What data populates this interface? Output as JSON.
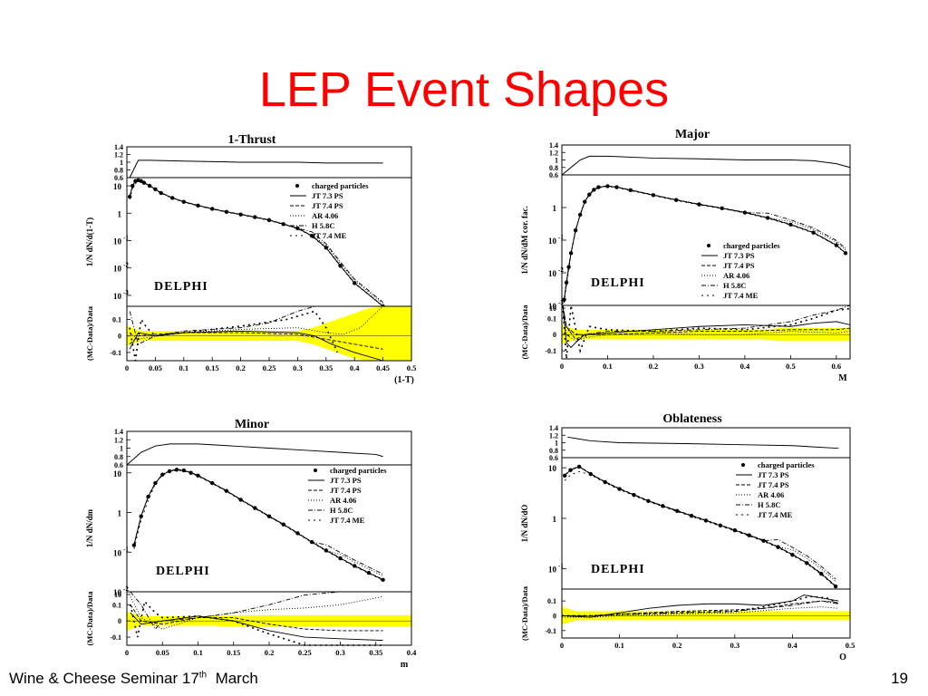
{
  "slide": {
    "title": "LEP Event Shapes",
    "footer_left": "Wine & Cheese Seminar 17",
    "footer_sup": "th",
    "footer_month": "  March",
    "page_number": "19"
  },
  "chart_data": [
    {
      "type": "line",
      "title": "1-Thrust",
      "xlabel": "(1-T)",
      "ylabel": "1/N dN/d(1-T)",
      "experiment_label": "DELPHI",
      "xlim": [
        0,
        0.5
      ],
      "xticks": [
        "0",
        "0.05",
        "0.1",
        "0.15",
        "0.2",
        "0.25",
        "0.3",
        "0.35",
        "0.4",
        "0.45",
        "0.5"
      ],
      "ratio_panel": {
        "yticks": [
          "1.4",
          "1.2",
          "1",
          "0.8",
          "0.6"
        ],
        "x": [
          0.005,
          0.02,
          0.04,
          0.1,
          0.2,
          0.3,
          0.35,
          0.4,
          0.45
        ],
        "y": [
          0.6,
          1.05,
          1.05,
          1.03,
          1.0,
          1.0,
          0.98,
          0.98,
          0.98
        ]
      },
      "main_panel": {
        "yticks": [
          "10",
          "1",
          "10-1",
          "10-2",
          "10-3"
        ],
        "log_range": [
          -3.4,
          1.3
        ],
        "legend": [
          "charged particles",
          "JT 7.3 PS",
          "JT 7.4 PS",
          "AR 4.06",
          "H 5.8C",
          "JT 7.4 ME"
        ],
        "data": {
          "x": [
            0.005,
            0.01,
            0.015,
            0.02,
            0.025,
            0.03,
            0.04,
            0.05,
            0.06,
            0.08,
            0.1,
            0.125,
            0.15,
            0.175,
            0.2,
            0.225,
            0.25,
            0.275,
            0.3,
            0.325,
            0.35,
            0.375,
            0.4,
            0.45
          ],
          "y": [
            4,
            10,
            15,
            16,
            15,
            13,
            10,
            7.5,
            5.5,
            3.6,
            2.6,
            1.9,
            1.45,
            1.12,
            0.9,
            0.72,
            0.56,
            0.4,
            0.28,
            0.15,
            0.055,
            0.012,
            0.0028,
            0.0004
          ]
        }
      },
      "diff_panel": {
        "yticks": [
          "0.1",
          "0",
          "-0.1"
        ],
        "ylabel": "(MC-Data)/Data",
        "series": [
          {
            "name": "JT 7.3 PS",
            "x": [
              0.005,
              0.02,
              0.05,
              0.1,
              0.2,
              0.3,
              0.33,
              0.36,
              0.4,
              0.45
            ],
            "y": [
              -0.08,
              0.02,
              0.0,
              0.02,
              0.03,
              0.02,
              0.0,
              -0.05,
              -0.1,
              -0.15
            ]
          },
          {
            "name": "JT 7.4 PS",
            "x": [
              0.005,
              0.02,
              0.05,
              0.1,
              0.2,
              0.3,
              0.35,
              0.4,
              0.45
            ],
            "y": [
              -0.05,
              0.0,
              0.01,
              0.02,
              0.02,
              0.01,
              -0.02,
              -0.05,
              -0.08
            ]
          },
          {
            "name": "AR 4.06",
            "x": [
              0.005,
              0.02,
              0.05,
              0.1,
              0.2,
              0.3,
              0.35,
              0.38,
              0.41,
              0.45
            ],
            "y": [
              0.02,
              -0.02,
              0.0,
              0.02,
              0.04,
              0.05,
              0.02,
              0.01,
              0.05,
              0.2
            ]
          },
          {
            "name": "H 5.8C",
            "x": [
              0.005,
              0.02,
              0.05,
              0.1,
              0.2,
              0.25,
              0.3,
              0.33,
              0.36,
              0.4
            ],
            "y": [
              0.15,
              -0.05,
              0.0,
              0.03,
              0.05,
              0.08,
              0.15,
              0.2,
              0.25,
              0.35
            ]
          },
          {
            "name": "JT 7.4 ME",
            "x": [
              0.005,
              0.015,
              0.025,
              0.035,
              0.05,
              0.1,
              0.2,
              0.28,
              0.33,
              0.35,
              0.37
            ],
            "y": [
              0.05,
              -0.2,
              0.1,
              0.05,
              0.0,
              0.02,
              0.06,
              0.1,
              0.15,
              0.05,
              -0.1
            ]
          }
        ]
      }
    },
    {
      "type": "line",
      "title": "Major",
      "xlabel": "M",
      "ylabel": "1/N dN/dM cor. fac.",
      "experiment_label": "DELPHI",
      "xlim": [
        0,
        0.63
      ],
      "xticks": [
        "0",
        "0.1",
        "0.2",
        "0.3",
        "0.4",
        "0.5",
        "0.6"
      ],
      "ratio_panel": {
        "yticks": [
          "1.4",
          "1.2",
          "1",
          "0.8",
          "0.6"
        ],
        "x": [
          0.0,
          0.02,
          0.04,
          0.06,
          0.1,
          0.2,
          0.3,
          0.4,
          0.5,
          0.55,
          0.6,
          0.63
        ],
        "y": [
          0.6,
          0.8,
          1.0,
          1.1,
          1.1,
          1.05,
          1.03,
          1.0,
          1.0,
          0.98,
          0.9,
          0.8
        ]
      },
      "main_panel": {
        "yticks": [
          "1",
          "10-1",
          "10-2",
          "10-3"
        ],
        "log_range": [
          -3.0,
          1.0
        ],
        "legend": [
          "charged particles",
          "JT 7.3 PS",
          "JT 7.4 PS",
          "AR 4.06",
          "H 5.8C",
          "JT 7.4 ME"
        ],
        "data": {
          "x": [
            0.005,
            0.01,
            0.015,
            0.02,
            0.03,
            0.04,
            0.05,
            0.06,
            0.07,
            0.08,
            0.1,
            0.12,
            0.15,
            0.2,
            0.25,
            0.3,
            0.35,
            0.4,
            0.45,
            0.5,
            0.55,
            0.6,
            0.62
          ],
          "y": [
            0.0015,
            0.005,
            0.015,
            0.04,
            0.2,
            0.6,
            1.5,
            2.5,
            3.5,
            4.2,
            4.5,
            4.2,
            3.4,
            2.4,
            1.7,
            1.25,
            0.95,
            0.7,
            0.48,
            0.3,
            0.17,
            0.07,
            0.04
          ]
        }
      },
      "diff_panel": {
        "yticks": [
          "10",
          "0.1",
          "0",
          "-0.1"
        ],
        "ylabel": "(MC-Data)/Data",
        "series": [
          {
            "name": "JT 7.3 PS",
            "x": [
              0.002,
              0.01,
              0.02,
              0.03,
              0.05,
              0.1,
              0.2,
              0.3,
              0.4,
              0.5,
              0.55,
              0.6,
              0.63
            ],
            "y": [
              0.3,
              -0.05,
              -0.08,
              -0.05,
              0.0,
              0.01,
              0.03,
              0.05,
              0.06,
              0.05,
              0.07,
              0.08,
              0.06
            ]
          },
          {
            "name": "JT 7.4 PS",
            "x": [
              0.002,
              0.01,
              0.03,
              0.05,
              0.1,
              0.2,
              0.3,
              0.4,
              0.5,
              0.6,
              0.63
            ],
            "y": [
              0.25,
              0.05,
              -0.03,
              0.0,
              0.0,
              0.01,
              0.02,
              0.02,
              0.03,
              0.03,
              0.04
            ]
          },
          {
            "name": "AR 4.06",
            "x": [
              0.002,
              0.01,
              0.03,
              0.05,
              0.1,
              0.2,
              0.3,
              0.4,
              0.5,
              0.6,
              0.63
            ],
            "y": [
              0.2,
              0.0,
              -0.04,
              -0.02,
              0.0,
              0.01,
              0.0,
              0.0,
              0.02,
              0.01,
              0.02
            ]
          },
          {
            "name": "H 5.8C",
            "x": [
              0.002,
              0.01,
              0.03,
              0.05,
              0.1,
              0.2,
              0.3,
              0.4,
              0.5,
              0.55,
              0.6,
              0.63
            ],
            "y": [
              0.25,
              0.05,
              0.0,
              0.0,
              0.02,
              0.02,
              0.03,
              0.04,
              0.08,
              0.12,
              0.15,
              0.18
            ]
          },
          {
            "name": "JT 7.4 ME",
            "x": [
              0.002,
              0.01,
              0.02,
              0.04,
              0.06,
              0.1,
              0.2,
              0.3,
              0.4,
              0.5,
              0.55,
              0.6,
              0.63
            ],
            "y": [
              0.35,
              -0.15,
              0.3,
              -0.1,
              0.05,
              0.03,
              0.02,
              0.04,
              0.03,
              0.06,
              0.1,
              0.15,
              0.16
            ]
          }
        ]
      }
    },
    {
      "type": "line",
      "title": "Minor",
      "xlabel": "m",
      "ylabel": "1/N dN/dm",
      "experiment_label": "DELPHI",
      "xlim": [
        0,
        0.4
      ],
      "xticks": [
        "0",
        "0.05",
        "0.1",
        "0.15",
        "0.2",
        "0.25",
        "0.3",
        "0.35",
        "0.4"
      ],
      "ratio_panel": {
        "yticks": [
          "1.4",
          "1.2",
          "1",
          "0.8",
          "0.6"
        ],
        "x": [
          0.0,
          0.02,
          0.04,
          0.06,
          0.1,
          0.15,
          0.2,
          0.25,
          0.3,
          0.35,
          0.36
        ],
        "y": [
          0.6,
          0.9,
          1.05,
          1.1,
          1.1,
          1.05,
          1.0,
          0.95,
          0.9,
          0.85,
          0.8
        ]
      },
      "main_panel": {
        "yticks": [
          "10",
          "1",
          "10-1",
          "10-2"
        ],
        "log_range": [
          -2.0,
          1.2
        ],
        "legend": [
          "charged particles",
          "JT 7.3 PS",
          "JT 7.4 PS",
          "AR 4.06",
          "H 5.8C",
          "JT 7.4 ME"
        ],
        "data": {
          "x": [
            0.01,
            0.02,
            0.03,
            0.04,
            0.05,
            0.06,
            0.07,
            0.08,
            0.09,
            0.1,
            0.12,
            0.14,
            0.16,
            0.18,
            0.2,
            0.22,
            0.24,
            0.26,
            0.28,
            0.3,
            0.32,
            0.34,
            0.36
          ],
          "y": [
            0.15,
            0.8,
            2.5,
            5.5,
            9,
            11,
            12,
            11.5,
            10,
            8.5,
            5.5,
            3.5,
            2.1,
            1.3,
            0.8,
            0.5,
            0.3,
            0.18,
            0.11,
            0.07,
            0.045,
            0.03,
            0.02
          ]
        }
      },
      "diff_panel": {
        "yticks": [
          "10",
          "0.1",
          "0",
          "-0.1"
        ],
        "ylabel": "(MC-Data)/Data",
        "series": [
          {
            "name": "JT 7.3 PS",
            "x": [
              0.005,
              0.02,
              0.05,
              0.1,
              0.15,
              0.2,
              0.25,
              0.3,
              0.36
            ],
            "y": [
              0.05,
              -0.02,
              0.0,
              0.03,
              0.0,
              -0.06,
              -0.1,
              -0.11,
              -0.12
            ]
          },
          {
            "name": "JT 7.4 PS",
            "x": [
              0.005,
              0.02,
              0.05,
              0.1,
              0.15,
              0.2,
              0.25,
              0.3,
              0.36
            ],
            "y": [
              0.1,
              0.0,
              -0.02,
              0.02,
              0.02,
              -0.02,
              -0.05,
              -0.06,
              -0.06
            ]
          },
          {
            "name": "AR 4.06",
            "x": [
              0.005,
              0.02,
              0.05,
              0.1,
              0.15,
              0.2,
              0.25,
              0.3,
              0.36
            ],
            "y": [
              0.15,
              0.02,
              -0.05,
              0.02,
              0.05,
              0.07,
              0.08,
              0.1,
              0.15
            ]
          },
          {
            "name": "H 5.8C",
            "x": [
              0.005,
              0.02,
              0.04,
              0.05,
              0.1,
              0.15,
              0.2,
              0.25,
              0.3,
              0.36
            ],
            "y": [
              0.2,
              0.1,
              -0.05,
              0.0,
              0.02,
              0.05,
              0.1,
              0.16,
              0.21,
              0.25
            ]
          },
          {
            "name": "JT 7.4 ME",
            "x": [
              0.005,
              0.015,
              0.025,
              0.04,
              0.05,
              0.1,
              0.15,
              0.2,
              0.25,
              0.3,
              0.36
            ],
            "y": [
              0.1,
              -0.1,
              0.12,
              0.05,
              0.02,
              0.03,
              0.0,
              -0.08,
              -0.15,
              -0.2,
              -0.25
            ]
          }
        ]
      }
    },
    {
      "type": "line",
      "title": "Oblateness",
      "xlabel": "O",
      "ylabel": "1/N dN/dO",
      "experiment_label": "DELPHI",
      "xlim": [
        0,
        0.5
      ],
      "xticks": [
        "0",
        "0.1",
        "0.2",
        "0.3",
        "0.4",
        "0.5"
      ],
      "ratio_panel": {
        "yticks": [
          "1.4",
          "1.2",
          "1",
          "0.8",
          "0.6"
        ],
        "x": [
          0.01,
          0.05,
          0.1,
          0.2,
          0.3,
          0.4,
          0.48
        ],
        "y": [
          1.15,
          1.05,
          1.0,
          0.98,
          0.95,
          0.92,
          0.85
        ]
      },
      "main_panel": {
        "yticks": [
          "10",
          "1",
          "10-1"
        ],
        "log_range": [
          -1.4,
          1.2
        ],
        "legend": [
          "charged particles",
          "JT 7.3 PS",
          "JT 7.4 PS",
          "AR 4.06",
          "H 5.8C",
          "JT 7.4 ME"
        ],
        "data": {
          "x": [
            0.005,
            0.015,
            0.03,
            0.05,
            0.075,
            0.1,
            0.125,
            0.15,
            0.175,
            0.2,
            0.225,
            0.25,
            0.275,
            0.3,
            0.325,
            0.35,
            0.375,
            0.4,
            0.425,
            0.45,
            0.475
          ],
          "y": [
            7,
            9,
            10.5,
            7.5,
            5.2,
            3.8,
            2.9,
            2.2,
            1.75,
            1.4,
            1.12,
            0.9,
            0.72,
            0.58,
            0.46,
            0.36,
            0.27,
            0.19,
            0.13,
            0.08,
            0.045
          ]
        }
      },
      "diff_panel": {
        "yticks": [
          "0.1",
          "0",
          "-0.1"
        ],
        "ylabel": "(MC-Data)/Data",
        "series": [
          {
            "name": "JT 7.3 PS",
            "x": [
              0.0,
              0.05,
              0.1,
              0.15,
              0.2,
              0.25,
              0.3,
              0.35,
              0.4,
              0.42,
              0.45,
              0.48
            ],
            "y": [
              0.0,
              -0.01,
              0.02,
              0.05,
              0.07,
              0.08,
              0.08,
              0.07,
              0.1,
              0.14,
              0.12,
              0.1
            ]
          },
          {
            "name": "JT 7.4 PS",
            "x": [
              0.0,
              0.05,
              0.1,
              0.2,
              0.3,
              0.35,
              0.4,
              0.45,
              0.48
            ],
            "y": [
              0.0,
              0.0,
              0.01,
              0.03,
              0.04,
              0.05,
              0.08,
              0.1,
              0.09
            ]
          },
          {
            "name": "AR 4.06",
            "x": [
              0.0,
              0.05,
              0.1,
              0.2,
              0.3,
              0.4,
              0.45,
              0.48
            ],
            "y": [
              -0.01,
              -0.01,
              0.0,
              0.01,
              0.02,
              0.05,
              0.06,
              0.05
            ]
          },
          {
            "name": "H 5.8C",
            "x": [
              0.0,
              0.05,
              0.1,
              0.2,
              0.3,
              0.4,
              0.45,
              0.48
            ],
            "y": [
              0.0,
              0.0,
              0.01,
              0.02,
              0.03,
              0.07,
              0.1,
              0.08
            ]
          },
          {
            "name": "JT 7.4 ME",
            "x": [
              0.0,
              0.05,
              0.1,
              0.2,
              0.3,
              0.35,
              0.4,
              0.43,
              0.46,
              0.48
            ],
            "y": [
              0.0,
              0.0,
              0.01,
              0.02,
              0.03,
              0.06,
              0.1,
              0.13,
              0.12,
              0.08
            ]
          }
        ]
      }
    }
  ]
}
